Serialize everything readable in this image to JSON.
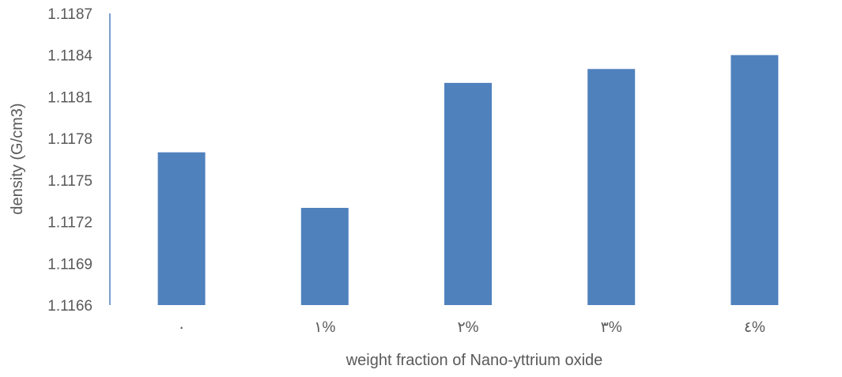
{
  "chart_data": {
    "type": "bar",
    "title": "",
    "xlabel": "weight fraction of Nano-yttrium oxide",
    "ylabel": "density (G/cm3)",
    "categories": [
      "٠",
      "١%",
      "٢%",
      "٣%",
      "٤%"
    ],
    "values": [
      1.1177,
      1.1173,
      1.1182,
      1.1183,
      1.1184
    ],
    "ylim": [
      1.1166,
      1.1187
    ],
    "yticks": [
      "1.1166",
      "1.1169",
      "1.1172",
      "1.1175",
      "1.1178",
      "1.1181",
      "1.1184",
      "1.1187"
    ],
    "grid": false,
    "legend": "none",
    "bar_color": "#4f81bd",
    "axis_color": "#4f81bd"
  }
}
